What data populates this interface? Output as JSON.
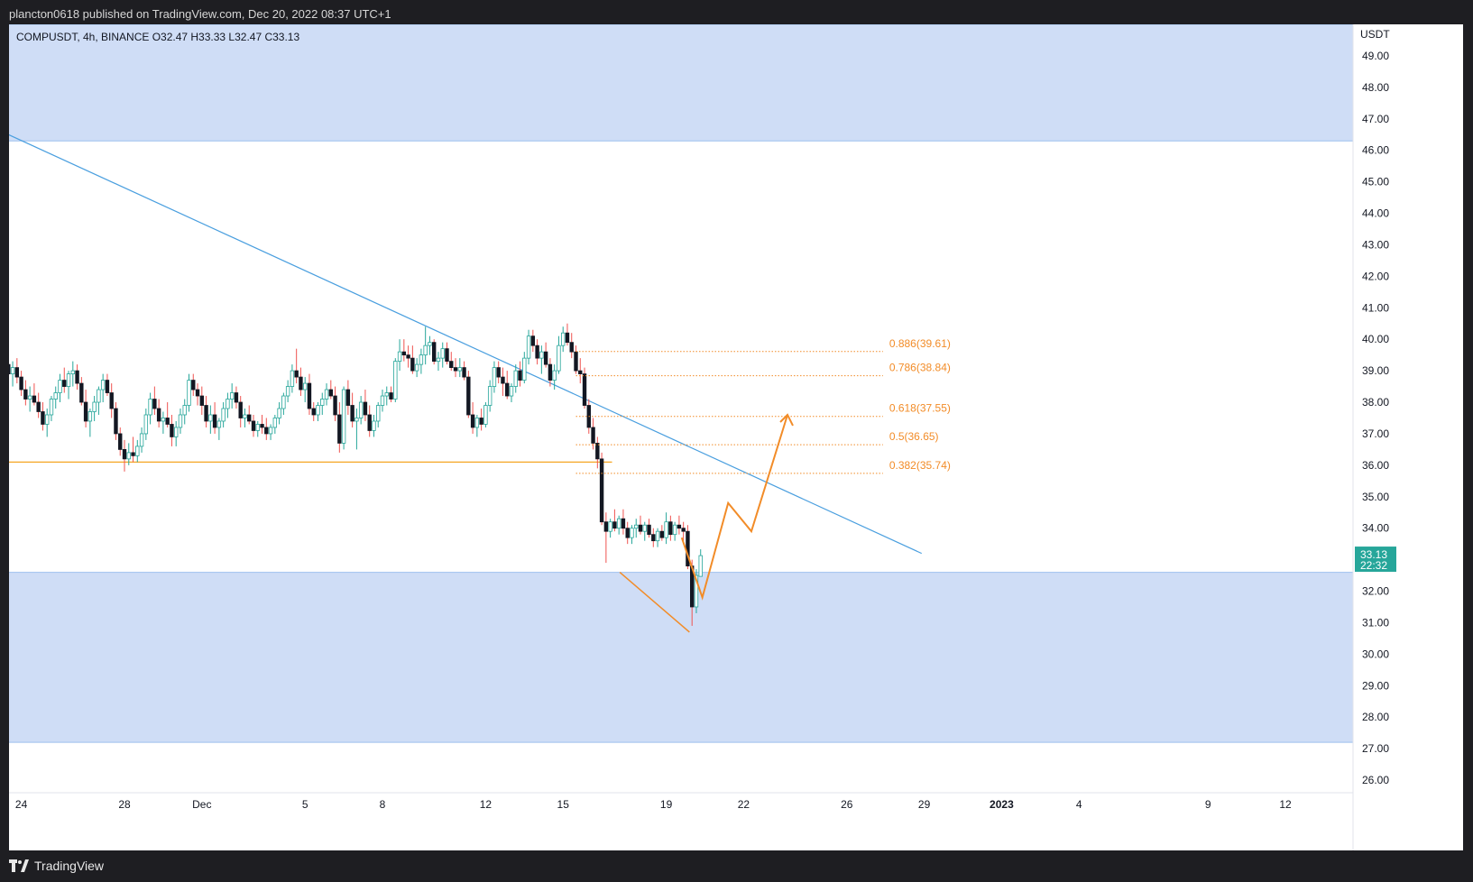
{
  "header": {
    "publisher": "plancton0618 published on TradingView.com, Dec 20, 2022 08:37 UTC+1"
  },
  "footer": {
    "brand": "TradingView"
  },
  "chart_data": {
    "type": "candlestick",
    "symbol_line": "COMPUSDT, 4h, BINANCE  O32.47  H33.33  L32.47  C33.13",
    "currency": "USDT",
    "ylim": [
      25.6,
      50.0
    ],
    "y_ticks": [
      "26.00",
      "27.00",
      "28.00",
      "29.00",
      "30.00",
      "31.00",
      "32.00",
      "33.00",
      "34.00",
      "35.00",
      "36.00",
      "37.00",
      "38.00",
      "39.00",
      "40.00",
      "41.00",
      "42.00",
      "43.00",
      "44.00",
      "45.00",
      "46.00",
      "47.00",
      "48.00",
      "49.00"
    ],
    "x_ticks": [
      {
        "label": "24",
        "day": -7
      },
      {
        "label": "28",
        "day": -3
      },
      {
        "label": "Dec",
        "day": 0
      },
      {
        "label": "5",
        "day": 4
      },
      {
        "label": "8",
        "day": 7
      },
      {
        "label": "12",
        "day": 11
      },
      {
        "label": "15",
        "day": 14
      },
      {
        "label": "19",
        "day": 18
      },
      {
        "label": "22",
        "day": 21
      },
      {
        "label": "26",
        "day": 25
      },
      {
        "label": "29",
        "day": 28
      },
      {
        "label": "2023",
        "day": 31
      },
      {
        "label": "4",
        "day": 34
      },
      {
        "label": "9",
        "day": 39
      },
      {
        "label": "12",
        "day": 42
      }
    ],
    "last_price": {
      "value": 33.13,
      "label": "33.13",
      "countdown": "22:32"
    },
    "zones": [
      {
        "from": 46.3,
        "to": 50.0,
        "color": "#cfddf6"
      },
      {
        "from": 27.2,
        "to": 32.6,
        "color": "#cfddf6"
      }
    ],
    "support_line": {
      "value": 36.1,
      "from_day": -7.5,
      "to_day": 15.9,
      "color": "#f5a623"
    },
    "trendline": {
      "from": {
        "day": -7.5,
        "value": 46.5
      },
      "to": {
        "day": 27.9,
        "value": 33.2
      },
      "color": "#4a9fdf"
    },
    "fib_levels": [
      {
        "ratio": "0.886",
        "value": 39.61,
        "label": "0.886(39.61)"
      },
      {
        "ratio": "0.786",
        "value": 38.84,
        "label": "0.786(38.84)"
      },
      {
        "ratio": "0.618",
        "value": 37.55,
        "label": "0.618(37.55)"
      },
      {
        "ratio": "0.5",
        "value": 36.65,
        "label": "0.5(36.65)"
      },
      {
        "ratio": "0.382",
        "value": 35.74,
        "label": "0.382(35.74)"
      }
    ],
    "fib_color": "#f28c28",
    "down_leg": [
      {
        "day": 16.2,
        "value": 32.6
      },
      {
        "day": 18.9,
        "value": 30.7
      }
    ],
    "projection_path": [
      {
        "day": 18.6,
        "value": 33.7
      },
      {
        "day": 19.4,
        "value": 31.8
      },
      {
        "day": 20.4,
        "value": 34.8
      },
      {
        "day": 21.3,
        "value": 33.9
      },
      {
        "day": 22.7,
        "value": 37.6
      }
    ],
    "candles": [
      [
        39.2,
        39.5,
        38.7,
        38.9
      ],
      [
        38.9,
        39.3,
        38.5,
        39.1
      ],
      [
        39.1,
        39.4,
        38.6,
        38.8
      ],
      [
        38.8,
        39.0,
        38.2,
        38.4
      ],
      [
        38.4,
        38.7,
        37.9,
        38.1
      ],
      [
        38.1,
        38.5,
        37.7,
        38.2
      ],
      [
        38.2,
        38.6,
        37.9,
        38.0
      ],
      [
        38.0,
        38.3,
        37.5,
        37.7
      ],
      [
        37.7,
        38.0,
        37.1,
        37.3
      ],
      [
        37.3,
        37.8,
        36.9,
        37.6
      ],
      [
        37.6,
        38.2,
        37.4,
        38.1
      ],
      [
        38.1,
        38.5,
        37.8,
        38.3
      ],
      [
        38.3,
        38.9,
        38.0,
        38.7
      ],
      [
        38.7,
        39.1,
        38.3,
        38.5
      ],
      [
        38.5,
        39.0,
        38.1,
        38.9
      ],
      [
        38.9,
        39.3,
        38.5,
        39.0
      ],
      [
        39.0,
        39.2,
        38.4,
        38.6
      ],
      [
        38.6,
        38.8,
        37.9,
        38.0
      ],
      [
        38.0,
        38.4,
        37.2,
        37.4
      ],
      [
        37.4,
        37.8,
        36.9,
        37.7
      ],
      [
        37.7,
        38.2,
        37.4,
        38.0
      ],
      [
        38.0,
        38.5,
        37.6,
        38.4
      ],
      [
        38.4,
        38.9,
        38.0,
        38.7
      ],
      [
        38.7,
        38.9,
        38.2,
        38.3
      ],
      [
        38.3,
        38.6,
        37.5,
        37.8
      ],
      [
        37.8,
        38.0,
        36.8,
        37.0
      ],
      [
        37.0,
        37.2,
        36.3,
        36.5
      ],
      [
        36.5,
        36.8,
        35.8,
        36.2
      ],
      [
        36.2,
        36.7,
        36.0,
        36.4
      ],
      [
        36.4,
        36.9,
        36.1,
        36.3
      ],
      [
        36.3,
        36.8,
        36.1,
        36.6
      ],
      [
        36.6,
        37.2,
        36.4,
        37.0
      ],
      [
        37.0,
        37.8,
        36.8,
        37.6
      ],
      [
        37.6,
        38.3,
        37.3,
        38.1
      ],
      [
        38.1,
        38.5,
        37.6,
        37.8
      ],
      [
        37.8,
        38.1,
        37.2,
        37.4
      ],
      [
        37.4,
        37.7,
        37.0,
        37.5
      ],
      [
        37.5,
        38.0,
        37.2,
        37.3
      ],
      [
        37.3,
        37.6,
        36.6,
        36.9
      ],
      [
        36.9,
        37.4,
        36.6,
        37.2
      ],
      [
        37.2,
        37.8,
        37.0,
        37.6
      ],
      [
        37.6,
        38.1,
        37.3,
        37.9
      ],
      [
        37.9,
        38.9,
        37.7,
        38.7
      ],
      [
        38.7,
        38.9,
        38.2,
        38.4
      ],
      [
        38.4,
        38.6,
        37.9,
        38.2
      ],
      [
        38.2,
        38.5,
        37.6,
        37.9
      ],
      [
        37.9,
        38.2,
        37.2,
        37.4
      ],
      [
        37.4,
        37.9,
        37.0,
        37.6
      ],
      [
        37.6,
        38.0,
        37.0,
        37.2
      ],
      [
        37.2,
        37.5,
        36.8,
        37.4
      ],
      [
        37.4,
        38.0,
        37.2,
        37.8
      ],
      [
        37.8,
        38.3,
        37.5,
        38.1
      ],
      [
        38.1,
        38.6,
        37.8,
        38.3
      ],
      [
        38.3,
        38.5,
        37.8,
        38.0
      ],
      [
        38.0,
        38.2,
        37.2,
        37.5
      ],
      [
        37.5,
        37.8,
        37.2,
        37.6
      ],
      [
        37.6,
        37.9,
        37.3,
        37.4
      ],
      [
        37.4,
        37.6,
        36.9,
        37.1
      ],
      [
        37.1,
        37.4,
        36.9,
        37.3
      ],
      [
        37.3,
        37.6,
        37.0,
        37.2
      ],
      [
        37.2,
        37.5,
        36.8,
        37.0
      ],
      [
        37.0,
        37.3,
        36.8,
        37.2
      ],
      [
        37.2,
        37.6,
        37.0,
        37.5
      ],
      [
        37.5,
        38.0,
        37.3,
        37.8
      ],
      [
        37.8,
        38.3,
        37.6,
        38.2
      ],
      [
        38.2,
        38.7,
        38.0,
        38.5
      ],
      [
        38.5,
        39.2,
        38.3,
        39.0
      ],
      [
        39.0,
        39.7,
        38.6,
        38.8
      ],
      [
        38.8,
        39.1,
        38.2,
        38.4
      ],
      [
        38.4,
        38.8,
        38.0,
        38.6
      ],
      [
        38.6,
        38.9,
        37.6,
        37.8
      ],
      [
        37.8,
        38.0,
        37.4,
        37.6
      ],
      [
        37.6,
        38.0,
        37.4,
        37.9
      ],
      [
        37.9,
        38.3,
        37.6,
        38.1
      ],
      [
        38.1,
        38.6,
        37.9,
        38.4
      ],
      [
        38.4,
        38.7,
        38.1,
        38.2
      ],
      [
        38.2,
        38.5,
        37.4,
        37.6
      ],
      [
        37.6,
        38.0,
        36.4,
        36.7
      ],
      [
        36.7,
        38.5,
        36.5,
        38.4
      ],
      [
        38.4,
        38.7,
        37.6,
        37.9
      ],
      [
        37.9,
        38.3,
        37.2,
        37.4
      ],
      [
        37.4,
        37.8,
        36.5,
        37.5
      ],
      [
        37.5,
        38.2,
        37.3,
        38.0
      ],
      [
        38.0,
        38.4,
        37.4,
        37.6
      ],
      [
        37.6,
        37.9,
        36.9,
        37.1
      ],
      [
        37.1,
        37.6,
        36.9,
        37.4
      ],
      [
        37.4,
        38.0,
        37.2,
        37.9
      ],
      [
        37.9,
        38.4,
        37.7,
        38.2
      ],
      [
        38.2,
        38.5,
        37.9,
        38.3
      ],
      [
        38.3,
        38.5,
        38.0,
        38.1
      ],
      [
        38.1,
        39.4,
        38.0,
        39.3
      ],
      [
        39.3,
        40.0,
        39.0,
        39.6
      ],
      [
        39.6,
        40.0,
        39.3,
        39.5
      ],
      [
        39.5,
        39.8,
        39.1,
        39.4
      ],
      [
        39.4,
        39.8,
        38.9,
        39.0
      ],
      [
        39.0,
        39.4,
        38.8,
        39.2
      ],
      [
        39.2,
        39.7,
        38.9,
        39.5
      ],
      [
        39.5,
        40.4,
        39.2,
        39.8
      ],
      [
        39.8,
        40.1,
        39.5,
        39.9
      ],
      [
        39.9,
        40.0,
        39.2,
        39.3
      ],
      [
        39.3,
        39.6,
        39.0,
        39.4
      ],
      [
        39.4,
        39.9,
        39.1,
        39.7
      ],
      [
        39.7,
        39.9,
        39.2,
        39.3
      ],
      [
        39.3,
        39.6,
        39.0,
        39.1
      ],
      [
        39.1,
        39.4,
        38.8,
        39.0
      ],
      [
        39.0,
        39.4,
        38.8,
        39.1
      ],
      [
        39.1,
        39.3,
        38.7,
        38.8
      ],
      [
        38.8,
        39.0,
        37.5,
        37.6
      ],
      [
        37.6,
        38.0,
        37.0,
        37.2
      ],
      [
        37.2,
        37.6,
        36.9,
        37.5
      ],
      [
        37.5,
        37.8,
        37.1,
        37.3
      ],
      [
        37.3,
        38.0,
        37.2,
        37.9
      ],
      [
        37.9,
        38.7,
        37.7,
        38.5
      ],
      [
        38.5,
        39.3,
        38.3,
        39.1
      ],
      [
        39.1,
        39.3,
        38.6,
        38.8
      ],
      [
        38.8,
        39.1,
        38.2,
        38.6
      ],
      [
        38.6,
        39.0,
        38.1,
        38.2
      ],
      [
        38.2,
        38.6,
        38.0,
        38.5
      ],
      [
        38.5,
        39.2,
        38.3,
        39.0
      ],
      [
        39.0,
        39.3,
        38.5,
        38.7
      ],
      [
        38.7,
        39.6,
        38.6,
        39.4
      ],
      [
        39.4,
        40.3,
        39.2,
        40.1
      ],
      [
        40.1,
        40.3,
        39.6,
        39.8
      ],
      [
        39.8,
        40.0,
        39.2,
        39.4
      ],
      [
        39.4,
        39.8,
        38.9,
        39.6
      ],
      [
        39.6,
        39.9,
        39.1,
        39.2
      ],
      [
        39.2,
        39.4,
        38.5,
        38.7
      ],
      [
        38.7,
        39.2,
        38.4,
        39.0
      ],
      [
        39.0,
        40.1,
        38.9,
        39.8
      ],
      [
        39.8,
        40.4,
        39.6,
        40.2
      ],
      [
        40.2,
        40.5,
        39.8,
        39.9
      ],
      [
        39.9,
        40.2,
        39.4,
        39.6
      ],
      [
        39.6,
        39.8,
        38.9,
        39.0
      ],
      [
        39.0,
        39.4,
        38.6,
        38.9
      ],
      [
        38.9,
        39.1,
        37.8,
        37.9
      ],
      [
        37.9,
        38.1,
        37.0,
        37.2
      ],
      [
        37.2,
        37.5,
        36.5,
        36.7
      ],
      [
        36.7,
        36.9,
        35.9,
        36.2
      ],
      [
        36.2,
        36.4,
        34.1,
        34.2
      ],
      [
        34.2,
        34.5,
        32.9,
        33.9
      ],
      [
        33.9,
        34.3,
        33.7,
        34.2
      ],
      [
        34.2,
        34.6,
        33.9,
        34.0
      ],
      [
        34.0,
        34.4,
        33.8,
        34.3
      ],
      [
        34.3,
        34.6,
        33.8,
        34.0
      ],
      [
        34.0,
        34.2,
        33.5,
        33.7
      ],
      [
        33.7,
        34.1,
        33.5,
        34.0
      ],
      [
        34.0,
        34.3,
        33.7,
        34.1
      ],
      [
        34.1,
        34.4,
        33.8,
        33.9
      ],
      [
        33.9,
        34.2,
        33.6,
        34.1
      ],
      [
        34.1,
        34.3,
        33.7,
        33.8
      ],
      [
        33.8,
        34.0,
        33.4,
        33.6
      ],
      [
        33.6,
        34.0,
        33.4,
        33.9
      ],
      [
        33.9,
        34.1,
        33.6,
        33.7
      ],
      [
        33.7,
        34.5,
        33.5,
        34.2
      ],
      [
        34.2,
        34.4,
        33.6,
        33.8
      ],
      [
        33.8,
        34.2,
        33.6,
        34.1
      ],
      [
        34.1,
        34.4,
        33.8,
        34.0
      ],
      [
        34.0,
        34.2,
        33.6,
        33.9
      ],
      [
        33.9,
        34.1,
        32.7,
        32.8
      ],
      [
        32.8,
        33.0,
        30.9,
        31.5
      ],
      [
        31.5,
        32.7,
        31.3,
        32.5
      ],
      [
        32.47,
        33.33,
        32.47,
        33.13
      ]
    ]
  }
}
